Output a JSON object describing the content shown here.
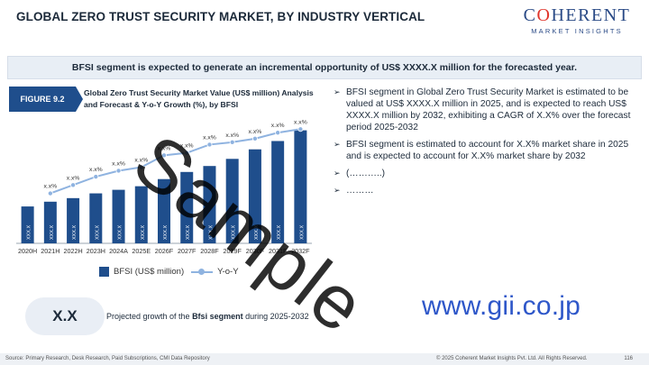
{
  "header": {
    "title": "GLOBAL ZERO TRUST SECURITY MARKET, BY INDUSTRY VERTICAL",
    "logo_main_pre": "C",
    "logo_main_accent": "O",
    "logo_main_post": "HERENT",
    "logo_sub": "MARKET INSIGHTS"
  },
  "banner": {
    "text": "BFSI segment is expected to generate an incremental opportunity of US$ XXXX.X million for the forecasted year."
  },
  "figure": {
    "tag": "FIGURE 9.2",
    "caption": "Global Zero Trust Security Market Value (US$ million) Analysis and Forecast & Y-o-Y Growth (%), by BFSI"
  },
  "chart_data": {
    "type": "bar",
    "categories": [
      "2020H",
      "2021H",
      "2022H",
      "2023H",
      "2024A",
      "2025E",
      "2026F",
      "2027F",
      "2028F",
      "2029F",
      "2030F",
      "2031F",
      "2032F"
    ],
    "series": [
      {
        "name": "BFSI (US$ million)",
        "type": "bar",
        "values": [
          31,
          35,
          38,
          42,
          45,
          48,
          54,
          60,
          65,
          71,
          79,
          86,
          95
        ],
        "data_labels": [
          "XXX.X",
          "XXX.X",
          "XXX.X",
          "XXX.X",
          "XXX.X",
          "XXX.X",
          "XXX.X",
          "XXX.X",
          "XXX.X",
          "XXX.X",
          "XXX.X",
          "XXX.X",
          "XXX.X"
        ]
      },
      {
        "name": "Y-o-Y",
        "type": "line",
        "values": [
          null,
          42,
          49,
          56,
          61,
          64,
          74,
          76,
          83,
          85,
          88,
          93,
          96
        ],
        "data_labels": [
          "",
          "x.x%",
          "x.x%",
          "x.x%",
          "x.x%",
          "x.x%",
          "x.x%",
          "x.x%",
          "x.x%",
          "x.x%",
          "x.x%",
          "x.x%",
          "x.x%"
        ]
      }
    ],
    "ylim": [
      0,
      100
    ],
    "grid": false,
    "legend": "bottom",
    "colors": {
      "bar": "#1f4e8c",
      "line": "#8fb3e0"
    }
  },
  "bullets": [
    "BFSI segment in Global Zero Trust Security Market is estimated to be valued at US$ XXXX.X million in 2025, and is expected to reach US$ XXXX.X million by 2032, exhibiting a CAGR of X.X% over the forecast period 2025-2032",
    "BFSI segment is estimated to account for X.X% market share in 2025 and is expected to account for X.X% market share by 2032",
    "(………..)",
    "………"
  ],
  "highlight": {
    "value": "X.X",
    "text_pre": "Projected growth of the ",
    "text_bold": "Bfsi segment",
    "text_post": " during 2025-2032"
  },
  "watermarks": {
    "sample": "Sample",
    "gii": "www.gii.co.jp"
  },
  "footer": {
    "source": "Source: Primary Research, Desk Research, Paid Subscriptions, CMI Data Repository",
    "copyright": "© 2025 Coherent Market Insights Pvt. Ltd. All Rights Reserved.",
    "page": "116"
  }
}
